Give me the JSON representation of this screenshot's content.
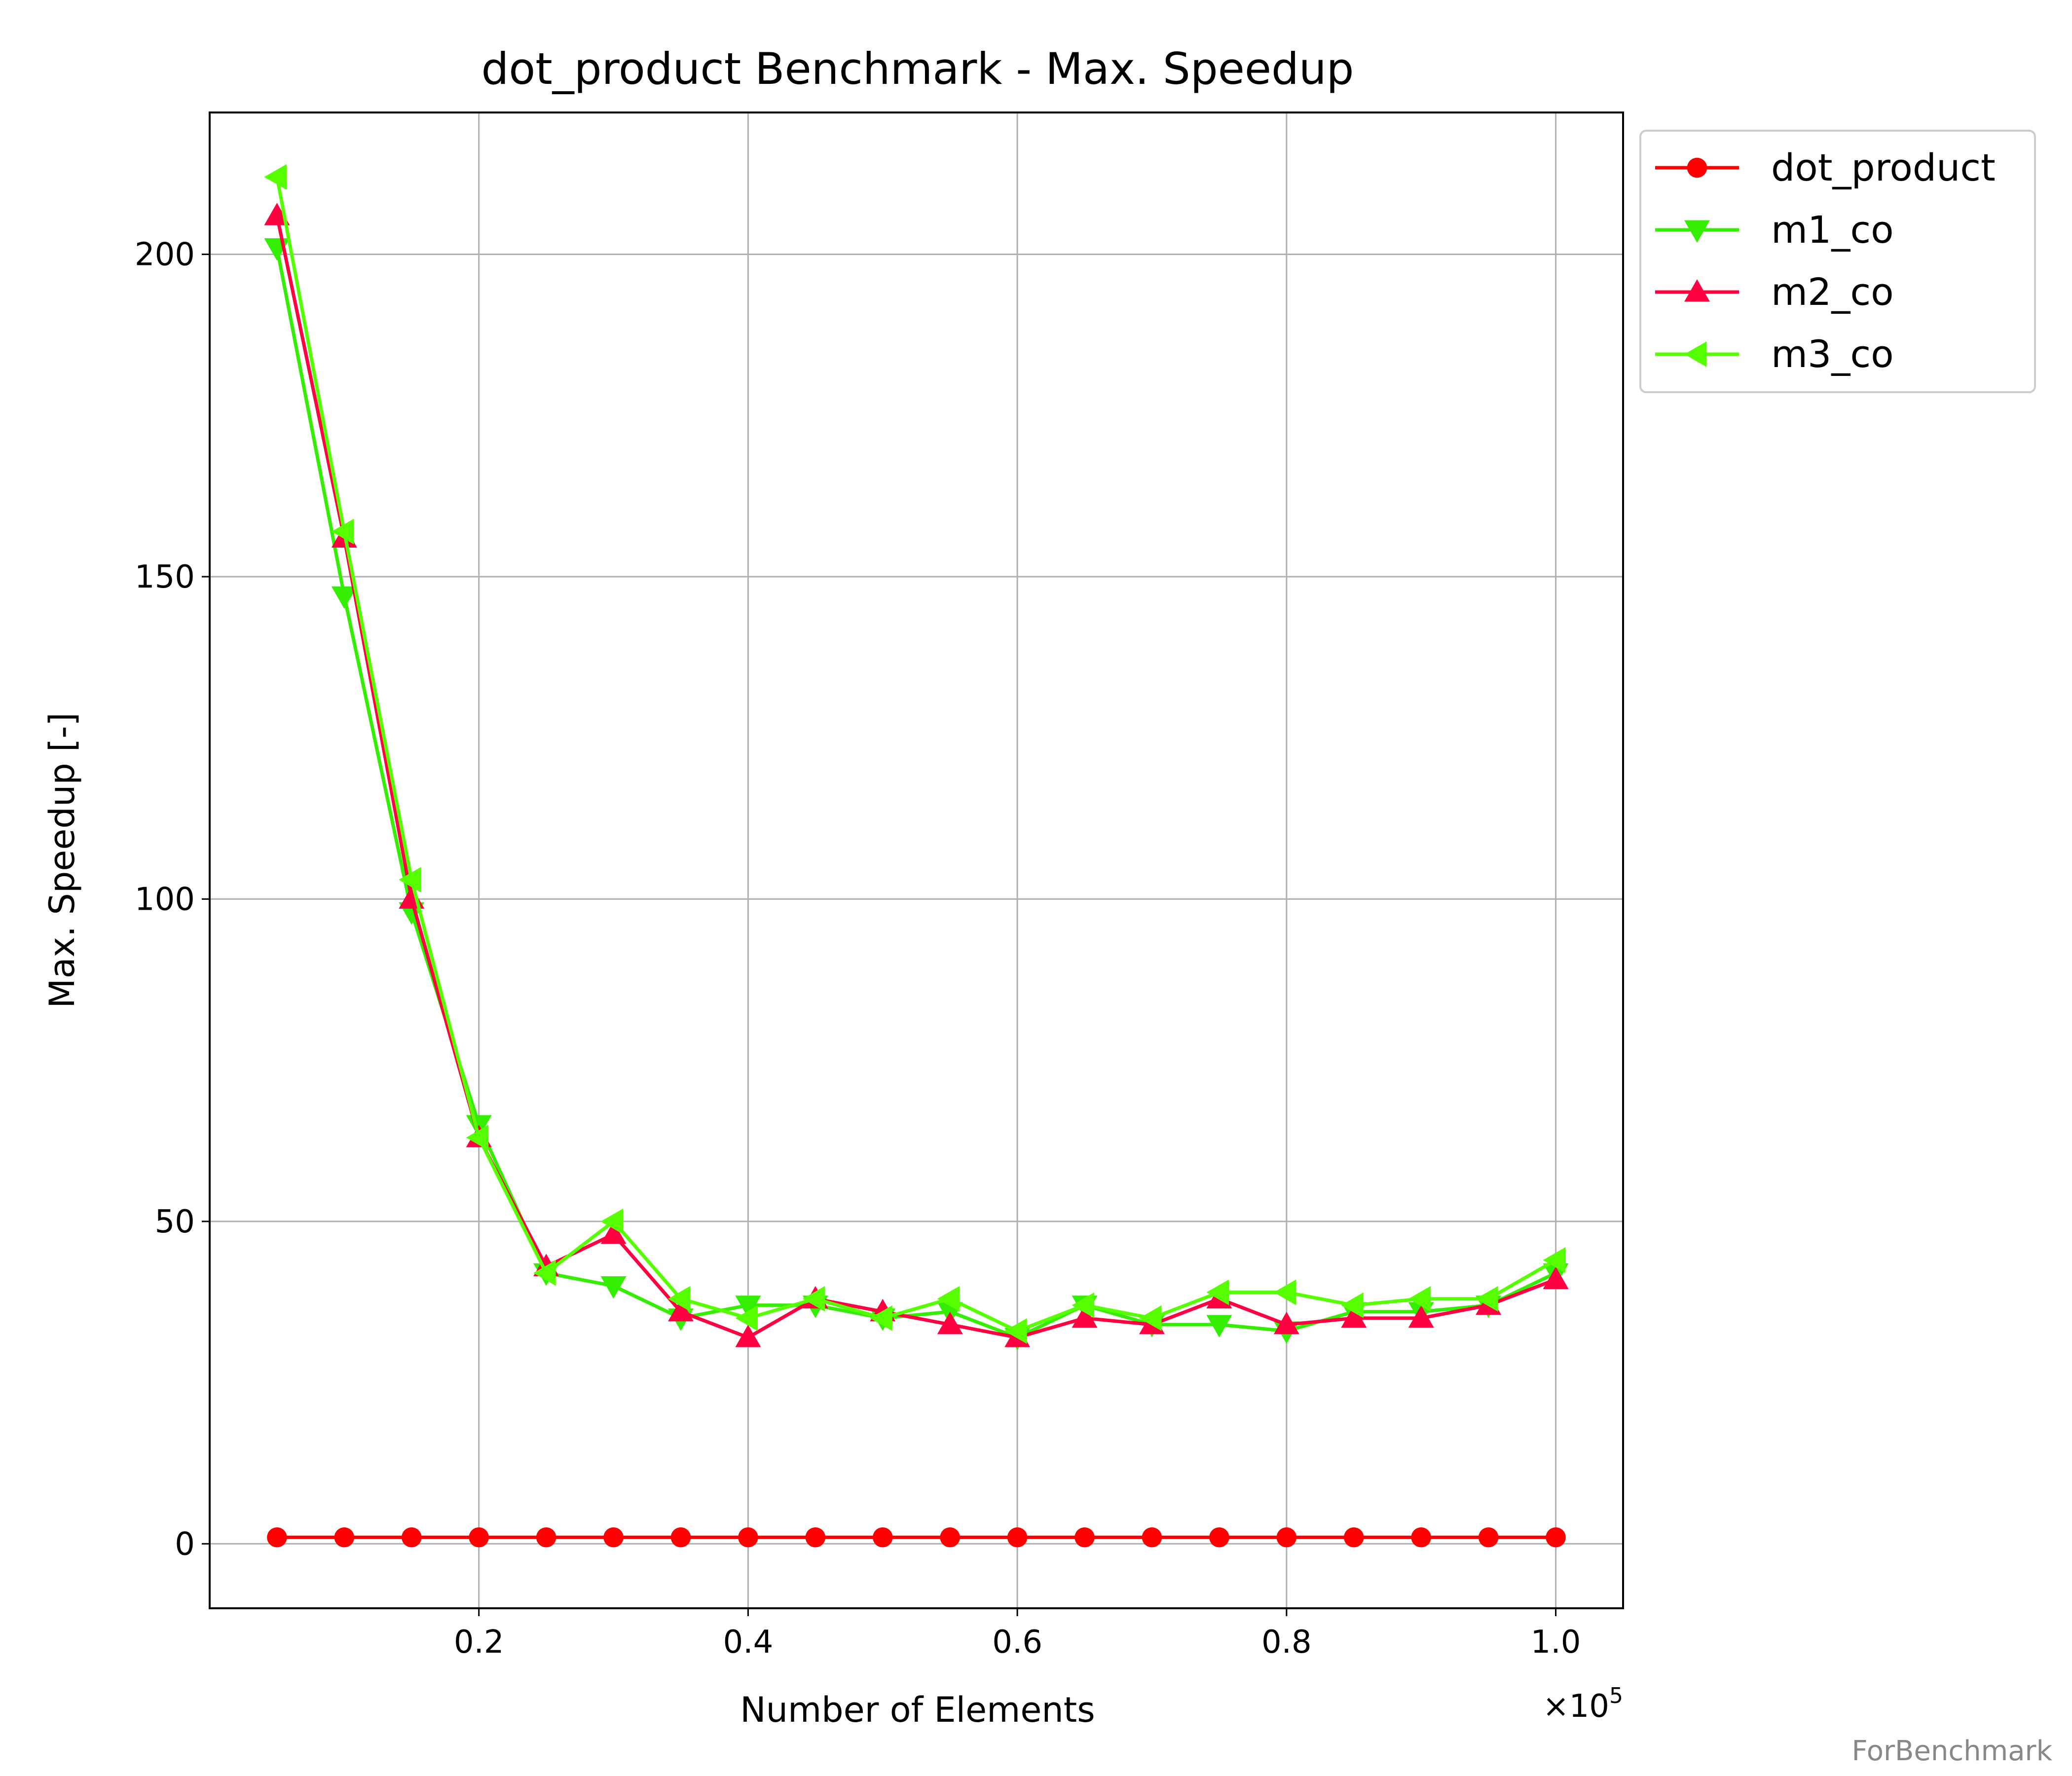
{
  "watermark": "ForBenchmark",
  "chart_data": {
    "type": "line",
    "title": "dot_product Benchmark - Max. Speedup",
    "xlabel": "Number of Elements",
    "ylabel": "Max. Speedup [-]",
    "x_scale_label": "×10",
    "x_scale_exponent": "5",
    "xlim": [
      0.0,
      1.05
    ],
    "ylim": [
      -10,
      222
    ],
    "xticks": [
      0.2,
      0.4,
      0.6,
      0.8,
      1.0
    ],
    "xtick_labels": [
      "0.2",
      "0.4",
      "0.6",
      "0.8",
      "1.0"
    ],
    "yticks": [
      0,
      50,
      100,
      150,
      200
    ],
    "ytick_labels": [
      "0",
      "50",
      "100",
      "150",
      "200"
    ],
    "grid": true,
    "legend_position": "outside-top-right",
    "x": [
      0.05,
      0.1,
      0.15,
      0.2,
      0.25,
      0.3,
      0.35,
      0.4,
      0.45,
      0.5,
      0.55,
      0.6,
      0.65,
      0.7,
      0.75,
      0.8,
      0.85,
      0.9,
      0.95,
      1.0
    ],
    "series": [
      {
        "name": "dot_product",
        "color": "#ff0000",
        "marker": "circle",
        "values": [
          1,
          1,
          1,
          1,
          1,
          1,
          1,
          1,
          1,
          1,
          1,
          1,
          1,
          1,
          1,
          1,
          1,
          1,
          1,
          1
        ]
      },
      {
        "name": "m1_co",
        "color": "#33ee00",
        "marker": "triangle-down",
        "values": [
          201,
          147,
          98,
          65,
          42,
          40,
          35,
          37,
          37,
          35,
          36,
          32,
          37,
          34,
          34,
          33,
          36,
          36,
          37,
          42
        ]
      },
      {
        "name": "m2_co",
        "color": "#ff0040",
        "marker": "triangle-up",
        "values": [
          206,
          156,
          100,
          63,
          43,
          48,
          36,
          32,
          38,
          36,
          34,
          32,
          35,
          34,
          38,
          34,
          35,
          35,
          37,
          41
        ]
      },
      {
        "name": "m3_co",
        "color": "#55ff00",
        "marker": "triangle-left",
        "values": [
          212,
          157,
          103,
          63,
          42,
          50,
          38,
          35,
          38,
          35,
          38,
          33,
          37,
          35,
          39,
          39,
          37,
          38,
          38,
          44
        ]
      }
    ]
  }
}
